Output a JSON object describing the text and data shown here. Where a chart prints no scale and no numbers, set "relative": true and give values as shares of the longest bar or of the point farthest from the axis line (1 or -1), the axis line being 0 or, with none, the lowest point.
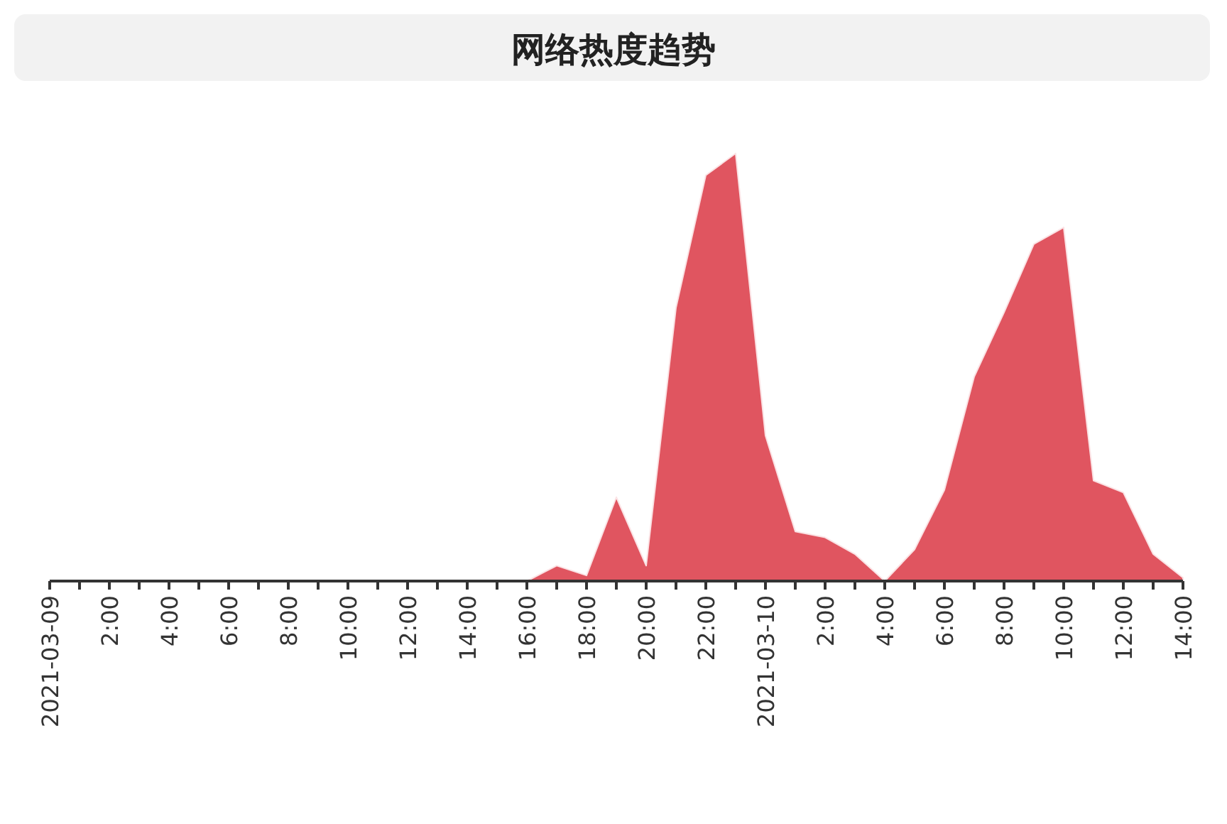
{
  "chart_data": {
    "type": "area",
    "title": "网络热度趋势",
    "relative": true,
    "x": [
      "2021-03-09T00:00",
      "2021-03-09T01:00",
      "2021-03-09T02:00",
      "2021-03-09T03:00",
      "2021-03-09T04:00",
      "2021-03-09T05:00",
      "2021-03-09T06:00",
      "2021-03-09T07:00",
      "2021-03-09T08:00",
      "2021-03-09T09:00",
      "2021-03-09T10:00",
      "2021-03-09T11:00",
      "2021-03-09T12:00",
      "2021-03-09T13:00",
      "2021-03-09T14:00",
      "2021-03-09T15:00",
      "2021-03-09T16:00",
      "2021-03-09T17:00",
      "2021-03-09T18:00",
      "2021-03-09T19:00",
      "2021-03-09T20:00",
      "2021-03-09T21:00",
      "2021-03-09T22:00",
      "2021-03-09T23:00",
      "2021-03-10T00:00",
      "2021-03-10T01:00",
      "2021-03-10T02:00",
      "2021-03-10T03:00",
      "2021-03-10T04:00",
      "2021-03-10T05:00",
      "2021-03-10T06:00",
      "2021-03-10T07:00",
      "2021-03-10T08:00",
      "2021-03-10T09:00",
      "2021-03-10T10:00",
      "2021-03-10T11:00",
      "2021-03-10T12:00",
      "2021-03-10T13:00",
      "2021-03-10T14:00"
    ],
    "series": [
      {
        "color": "#e05560",
        "values": [
          0,
          0,
          0,
          0,
          0,
          0,
          0,
          0,
          0,
          0,
          0,
          0,
          0,
          0,
          0,
          0,
          0,
          0.036,
          0.013,
          0.196,
          0.036,
          0.639,
          0.949,
          1.0,
          0.34,
          0.116,
          0.102,
          0.063,
          0,
          0.074,
          0.213,
          0.478,
          0.628,
          0.788,
          0.827,
          0.235,
          0.207,
          0.063,
          0.008
        ]
      }
    ],
    "xlim": [
      "2021-03-09T00:00",
      "2021-03-10T14:00"
    ],
    "xticks": [
      {
        "value": "2021-03-09T00:00",
        "label": "2021-03-09"
      },
      {
        "value": "2021-03-09T01:00",
        "label": null
      },
      {
        "value": "2021-03-09T02:00",
        "label": "2:00"
      },
      {
        "value": "2021-03-09T03:00",
        "label": null
      },
      {
        "value": "2021-03-09T04:00",
        "label": "4:00"
      },
      {
        "value": "2021-03-09T05:00",
        "label": null
      },
      {
        "value": "2021-03-09T06:00",
        "label": "6:00"
      },
      {
        "value": "2021-03-09T07:00",
        "label": null
      },
      {
        "value": "2021-03-09T08:00",
        "label": "8:00"
      },
      {
        "value": "2021-03-09T09:00",
        "label": null
      },
      {
        "value": "2021-03-09T10:00",
        "label": "10:00"
      },
      {
        "value": "2021-03-09T11:00",
        "label": null
      },
      {
        "value": "2021-03-09T12:00",
        "label": "12:00"
      },
      {
        "value": "2021-03-09T13:00",
        "label": null
      },
      {
        "value": "2021-03-09T14:00",
        "label": "14:00"
      },
      {
        "value": "2021-03-09T15:00",
        "label": null
      },
      {
        "value": "2021-03-09T16:00",
        "label": "16:00"
      },
      {
        "value": "2021-03-09T17:00",
        "label": null
      },
      {
        "value": "2021-03-09T18:00",
        "label": "18:00"
      },
      {
        "value": "2021-03-09T19:00",
        "label": null
      },
      {
        "value": "2021-03-09T20:00",
        "label": "20:00"
      },
      {
        "value": "2021-03-09T21:00",
        "label": null
      },
      {
        "value": "2021-03-09T22:00",
        "label": "22:00"
      },
      {
        "value": "2021-03-09T23:00",
        "label": null
      },
      {
        "value": "2021-03-10T00:00",
        "label": "2021-03-10"
      },
      {
        "value": "2021-03-10T01:00",
        "label": null
      },
      {
        "value": "2021-03-10T02:00",
        "label": "2:00"
      },
      {
        "value": "2021-03-10T03:00",
        "label": null
      },
      {
        "value": "2021-03-10T04:00",
        "label": "4:00"
      },
      {
        "value": "2021-03-10T05:00",
        "label": null
      },
      {
        "value": "2021-03-10T06:00",
        "label": "6:00"
      },
      {
        "value": "2021-03-10T07:00",
        "label": null
      },
      {
        "value": "2021-03-10T08:00",
        "label": "8:00"
      },
      {
        "value": "2021-03-10T09:00",
        "label": null
      },
      {
        "value": "2021-03-10T10:00",
        "label": "10:00"
      },
      {
        "value": "2021-03-10T11:00",
        "label": null
      },
      {
        "value": "2021-03-10T12:00",
        "label": "12:00"
      },
      {
        "value": "2021-03-10T13:00",
        "label": null
      },
      {
        "value": "2021-03-10T14:00",
        "label": "14:00"
      }
    ]
  }
}
